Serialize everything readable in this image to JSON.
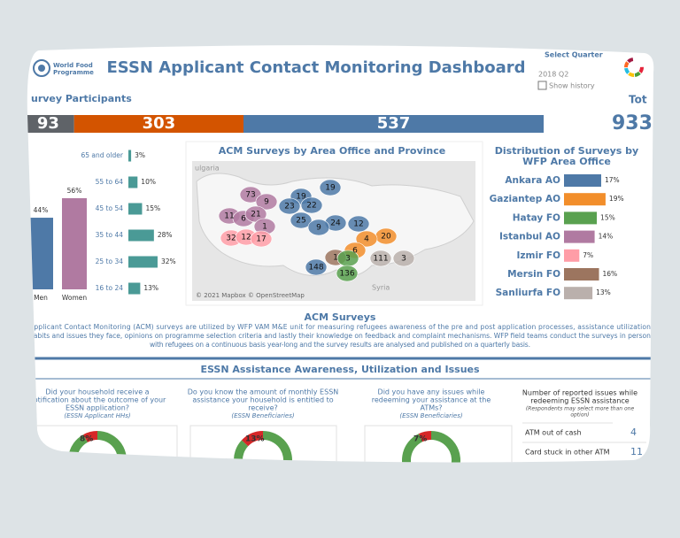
{
  "header": {
    "logo_text": [
      "World Food",
      "Programme"
    ],
    "title": "ESSN Applicant Contact Monitoring Dashboard",
    "filter_label": "Select Quarter",
    "filter_value": "2018 Q2",
    "checkbox_label": "Show history"
  },
  "participants": {
    "heading": "urvey Participants",
    "total_heading": "Tot",
    "total": 933
  },
  "chart_data": [
    {
      "type": "stacked-hbar",
      "values": [
        93,
        303,
        537
      ],
      "colors": [
        "#5f6368",
        "#d35400",
        "#4e79a7"
      ]
    },
    {
      "type": "hbar",
      "categories": [
        "65 and older",
        "55 to 64",
        "45 to 54",
        "35 to 44",
        "25 to 34",
        "16 to 24"
      ],
      "values": [
        3,
        10,
        15,
        28,
        32,
        13
      ],
      "value_labels": [
        "3%",
        "10%",
        "15%",
        "28%",
        "32%",
        "13%"
      ],
      "color": "#4a9a96"
    },
    {
      "type": "bar",
      "categories": [
        "Men",
        "Women"
      ],
      "values": [
        44,
        56
      ],
      "value_labels": [
        "44%",
        "56%"
      ],
      "colors": [
        "#4e79a7",
        "#b07aa1"
      ]
    },
    {
      "type": "map",
      "title": "ACM Surveys by Area Office and Province",
      "values": [
        73,
        9,
        19,
        19,
        23,
        22,
        11,
        6,
        21,
        25,
        24,
        12,
        1,
        9,
        32,
        12,
        17,
        20,
        4,
        6,
        111,
        3,
        148,
        1,
        3,
        136
      ],
      "colors": [
        "#b07aa1",
        "#b07aa1",
        "#4e79a7",
        "#4e79a7",
        "#4e79a7",
        "#4e79a7",
        "#b07aa1",
        "#b07aa1",
        "#b07aa1",
        "#4e79a7",
        "#4e79a7",
        "#4e79a7",
        "#b07aa1",
        "#4e79a7",
        "#ff9da7",
        "#ff9da7",
        "#ff9da7",
        "#f28e2b",
        "#f28e2b",
        "#f28e2b",
        "#bab0ac",
        "#bab0ac",
        "#4e79a7",
        "#9c755f",
        "#59a14f",
        "#59a14f"
      ],
      "place_labels": [
        "ulgaria",
        "Syria"
      ],
      "attribution": "© 2021 Mapbox © OpenStreetMap"
    },
    {
      "type": "hbar",
      "title": [
        "Distribution of Surveys by",
        "WFP Area Office"
      ],
      "categories": [
        "Ankara AO",
        "Gaziantep AO",
        "Hatay FO",
        "Istanbul AO",
        "Izmir FO",
        "Mersin FO",
        "Sanliurfa FO"
      ],
      "values": [
        17,
        19,
        15,
        14,
        7,
        16,
        13
      ],
      "value_labels": [
        "17%",
        "19%",
        "15%",
        "14%",
        "7%",
        "16%",
        "13%"
      ],
      "colors": [
        "#4e79a7",
        "#f28e2b",
        "#59a14f",
        "#b07aa1",
        "#ff9da7",
        "#9c755f",
        "#bab0ac"
      ]
    },
    {
      "type": "donut",
      "title": [
        "Did your household receive a",
        "notification about the outcome of your",
        "ESSN application?"
      ],
      "subtitle": "(ESSN Applicant HHs)",
      "value": 8,
      "value_label": "8%",
      "colors": [
        "#d62728",
        "#59a14f"
      ]
    },
    {
      "type": "donut",
      "title": [
        "Do you know the amount of monthly ESSN",
        "assistance your household is entitled to",
        "receive?"
      ],
      "subtitle": "(ESSN Beneficiaries)",
      "value": 13,
      "value_label": "13%",
      "colors": [
        "#d62728",
        "#59a14f"
      ]
    },
    {
      "type": "donut",
      "title": [
        "Did you have any issues while",
        "redeeming your assistance at the",
        "ATMs?"
      ],
      "subtitle": "(ESSN Beneficiaries)",
      "value": 7,
      "value_label": "7%",
      "colors": [
        "#d62728",
        "#59a14f"
      ]
    }
  ],
  "acm": {
    "heading": "ACM Surveys",
    "text": [
      "Applicant Contact Monitoring (ACM) surveys are utilized by WFP VAM M&E unit for measuring refugees awareness of the pre and post application processes, assistance utilization",
      "habits and issues they face, opinions on programme selection criteria and lastly their knowledge on feedback and complaint mechanisms. WFP field teams conduct the surveys in person",
      "with refugees on a continuous basis year-long and the survey results are analysed and published on a quarterly basis."
    ]
  },
  "section": {
    "heading": "ESSN Assistance Awareness, Utilization and Issues"
  },
  "issues": {
    "heading": [
      "Number of reported issues while",
      "redeeming ESSN assistance"
    ],
    "note": [
      "(Respondents may select more than one",
      "option)"
    ],
    "rows": [
      [
        "ATM out of cash",
        4
      ],
      [
        "Card stuck in other ATM",
        11
      ]
    ]
  }
}
